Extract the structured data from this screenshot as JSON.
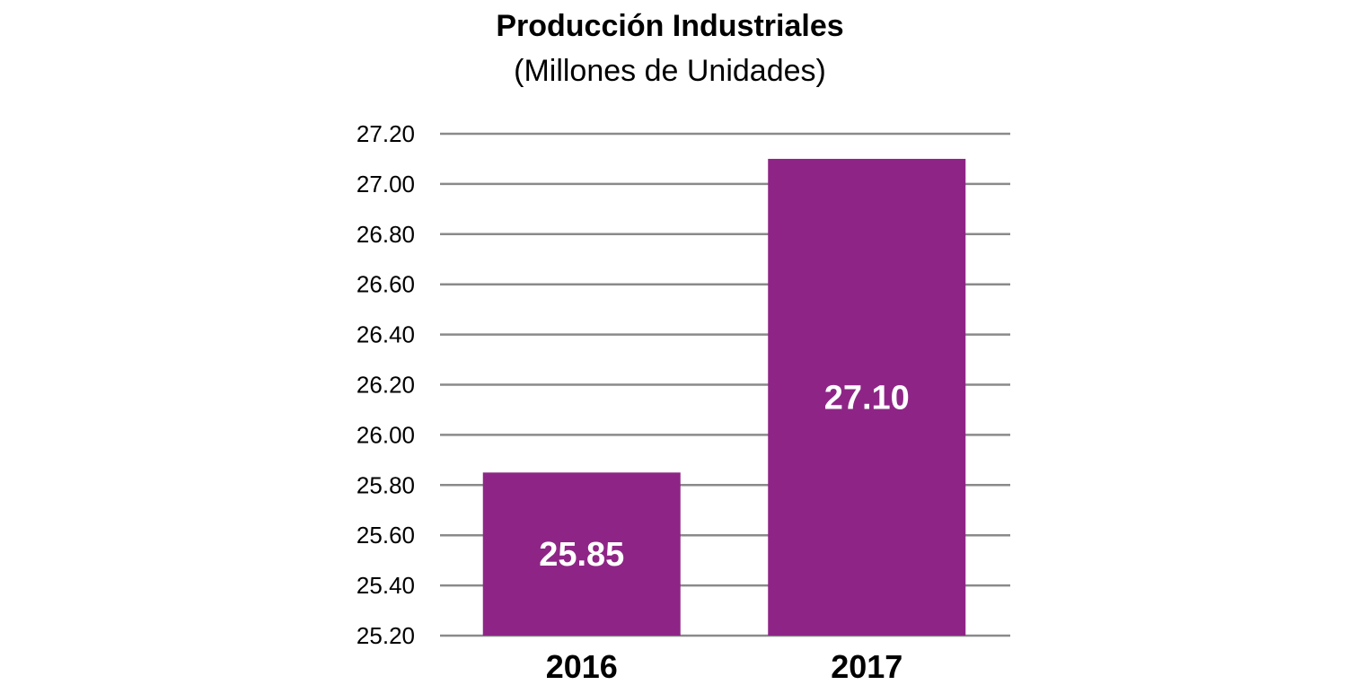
{
  "chart_data": {
    "type": "bar",
    "title": "Producción Industriales",
    "subtitle": "(Millones de Unidades)",
    "categories": [
      "2016",
      "2017"
    ],
    "values": [
      25.85,
      27.1
    ],
    "data_labels": [
      "25.85",
      "27.10"
    ],
    "xlabel": "",
    "ylabel": "",
    "ylim": [
      25.2,
      27.2
    ],
    "yticks": [
      25.2,
      25.4,
      25.6,
      25.8,
      26.0,
      26.2,
      26.4,
      26.6,
      26.8,
      27.0,
      27.2
    ],
    "ytick_labels": [
      "25.20",
      "25.40",
      "25.60",
      "25.80",
      "26.00",
      "26.20",
      "26.40",
      "26.60",
      "26.80",
      "27.00",
      "27.20"
    ],
    "grid": true,
    "legend": "none",
    "colors": {
      "bar": "#8E2586",
      "grid": "#8A8A8A"
    }
  }
}
